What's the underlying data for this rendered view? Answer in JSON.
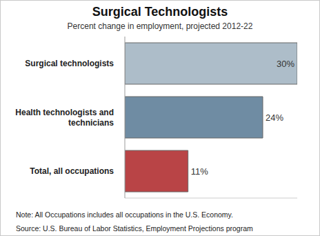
{
  "chart_data": {
    "type": "bar",
    "orientation": "horizontal",
    "title": "Surgical Technologists",
    "subtitle": "Percent change in employment, projected 2012-22",
    "categories": [
      "Surgical technologists",
      "Health technologists and technicians",
      "Total, all occupations"
    ],
    "values": [
      30,
      24,
      11
    ],
    "value_labels": [
      "30%",
      "24%",
      "11%"
    ],
    "colors": [
      "#adbdc9",
      "#6f8ca3",
      "#b94446"
    ],
    "xlim": [
      0,
      30
    ],
    "data_labels": true,
    "tick_labels": "y",
    "annotations": [
      "Note: All Occupations includes all occupations in the U.S. Economy.",
      "Source: U.S. Bureau of Labor Statistics, Employment Projections program"
    ]
  }
}
